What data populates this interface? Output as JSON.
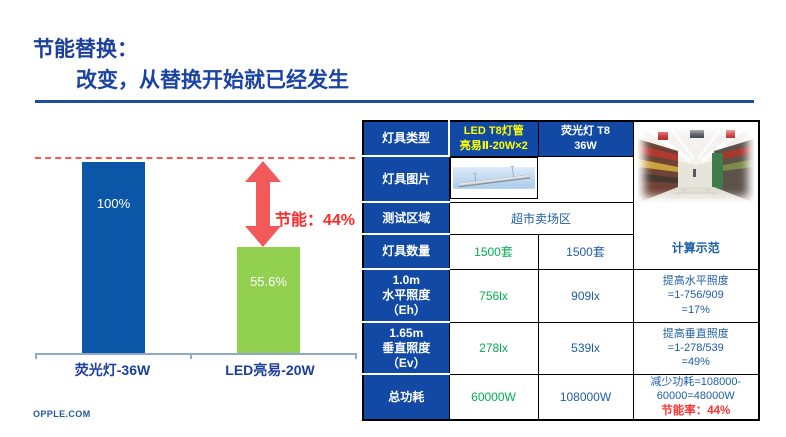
{
  "header": {
    "title": "节能替换：",
    "subtitle": "改变，从替换开始就已经发生"
  },
  "chart_data": {
    "type": "bar",
    "categories": [
      "荧光灯-36W",
      "LED亮易-20W"
    ],
    "values": [
      100,
      55.6
    ],
    "value_labels": [
      "100%",
      "55.6%"
    ],
    "series_colors": [
      "#0C56A8",
      "#92D050"
    ],
    "annotation": "节能：44%",
    "reference_line_pct": 100,
    "ylim": [
      0,
      100
    ],
    "grid": false,
    "legend": false
  },
  "table": {
    "col_headers": {
      "row_label": "灯具类型",
      "led": "LED T8灯管\n亮易Ⅱ-20W×2",
      "fluorescent": "荧光灯 T8\n36W"
    },
    "demo_label": "计算示范",
    "rows": {
      "image": {
        "label": "灯具图片"
      },
      "area": {
        "label": "测试区域",
        "value": "超市卖场区"
      },
      "qty": {
        "label": "灯具数量",
        "led": "1500套",
        "fluorescent": "1500套"
      },
      "eh": {
        "label": "1.0m\n水平照度\n（Eh）",
        "led": "756lx",
        "fluorescent": "909lx",
        "calc": "提高水平照度\n=1-756/909\n=17%"
      },
      "ev": {
        "label": "1.65m\n垂直照度\n（Ev）",
        "led": "278lx",
        "fluorescent": "539lx",
        "calc": "提高垂直照度\n=1-278/539\n=49%"
      },
      "power": {
        "label": "总功耗",
        "led": "60000W",
        "fluorescent": "108000W",
        "calc": "减少功耗=108000-\n60000=48000W",
        "calc_highlight": "节能率：44%"
      }
    }
  },
  "footer": {
    "logo": "OPPLE.COM"
  },
  "colors": {
    "brand_blue": "#1149A4",
    "bar_blue": "#0C56A8",
    "bar_green": "#92D050",
    "green_text": "#00B050",
    "blue_text": "#1F5EA8",
    "red_text": "#FF2B2B",
    "arrow_red": "#F2595A",
    "header_yellow": "#FFFF00"
  }
}
